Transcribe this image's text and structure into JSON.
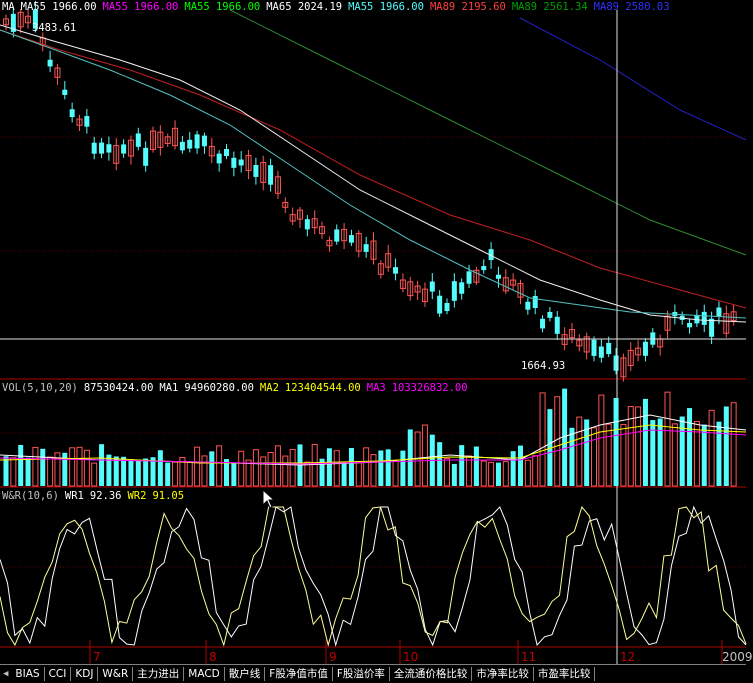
{
  "colors": {
    "up": "#ff5555",
    "down": "#54fcfc",
    "bg": "#000000",
    "grid_red": "#ae0000",
    "white": "#ffffff",
    "yellow": "#ffff00",
    "magenta": "#ff00ff",
    "green": "#00c000",
    "blue": "#2020c0",
    "pale_yellow": "#ffff99"
  },
  "price_panel": {
    "legend": [
      {
        "text": "MA",
        "color": "#ffffff"
      },
      {
        "text": "MA55 1966.00",
        "color": "#ffffff"
      },
      {
        "text": "MA55 1966.00",
        "color": "#ff00ff"
      },
      {
        "text": "MA55 1966.00",
        "color": "#00ff00"
      },
      {
        "text": "MA65 2024.19",
        "color": "#ffffff"
      },
      {
        "text": "MA55 1966.00",
        "color": "#54fcfc"
      },
      {
        "text": "MA89 2195.60",
        "color": "#ff4040"
      },
      {
        "text": "MA89 2561.34",
        "color": "#00a000"
      },
      {
        "text": "MA89 2580.03",
        "color": "#3030ff"
      }
    ],
    "high_label": "3483.61",
    "low_label": "1664.93"
  },
  "volume_panel": {
    "legend": [
      {
        "text": "VOL(5,10,20)",
        "color": "#c0c0c0"
      },
      {
        "text": "87530424.00",
        "color": "#ffffff"
      },
      {
        "text": "MA1",
        "color": "#ffffff"
      },
      {
        "text": "94960280.00",
        "color": "#ffffff"
      },
      {
        "text": "MA2",
        "color": "#ffff00"
      },
      {
        "text": "123404544.00",
        "color": "#ffff00"
      },
      {
        "text": "MA3",
        "color": "#ff00ff"
      },
      {
        "text": "103326832.00",
        "color": "#ff00ff"
      }
    ]
  },
  "wr_panel": {
    "legend": [
      {
        "text": "W&R(10,6)",
        "color": "#c0c0c0"
      },
      {
        "text": "WR1",
        "color": "#ffffff"
      },
      {
        "text": "92.36",
        "color": "#ffffff"
      },
      {
        "text": "WR2",
        "color": "#ffff00"
      },
      {
        "text": "91.05",
        "color": "#ffff00"
      }
    ]
  },
  "months": [
    {
      "label": "7",
      "tick": 90
    },
    {
      "label": "8",
      "tick": 206
    },
    {
      "label": "9",
      "tick": 326
    },
    {
      "label": "10",
      "tick": 400
    },
    {
      "label": "11",
      "tick": 518
    },
    {
      "label": "12",
      "tick": 617
    },
    {
      "label": "2009",
      "tick": 722
    }
  ],
  "tabs": [
    "BIAS",
    "CCI",
    "KDJ",
    "W&R",
    "主力进出",
    "MACD",
    "散户线",
    "F股净值市值",
    "F股溢价率",
    "全流通价格比较",
    "市净率比较",
    "市盈率比较"
  ]
}
